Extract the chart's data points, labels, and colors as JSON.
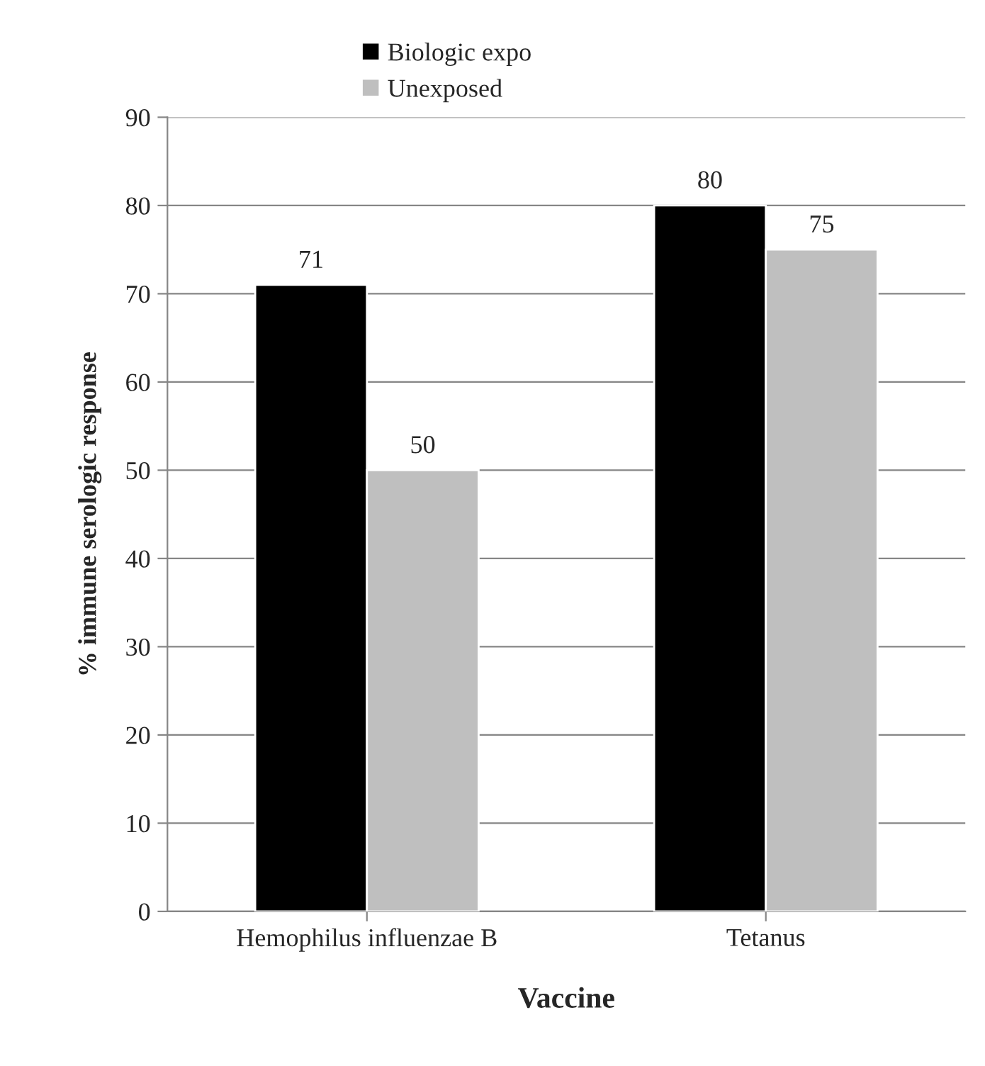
{
  "chart_data": {
    "type": "bar",
    "xlabel": "Vaccine",
    "ylabel": "% immune serologic response",
    "categories": [
      "Hemophilus influenzae B",
      "Tetanus"
    ],
    "series": [
      {
        "name": "Biologic expo",
        "color": "#000000",
        "values": [
          71,
          80
        ]
      },
      {
        "name": "Unexposed",
        "color": "#bfbfbf",
        "values": [
          50,
          75
        ]
      }
    ],
    "ylim": [
      0,
      90
    ],
    "yticks": [
      0,
      10,
      20,
      30,
      40,
      50,
      60,
      70,
      80,
      90
    ],
    "grid": "y",
    "legend": "top",
    "data_labels": true
  }
}
